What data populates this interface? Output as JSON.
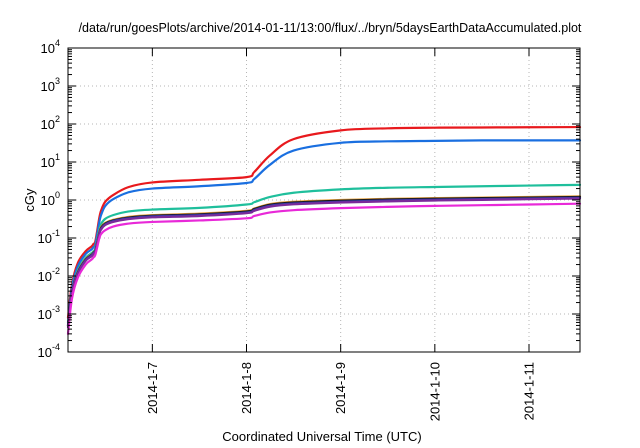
{
  "chart_data": {
    "type": "line",
    "title": "/data/run/goesPlots/archive/2014-01-11/13:00/flux/../bryn/5daysEarthDataAccumulated.plot",
    "xlabel": "Coordinated Universal Time (UTC)",
    "ylabel": "cGy",
    "x_ticks": [
      "2014-1-7",
      "2014-1-8",
      "2014-1-9",
      "2014-1-10",
      "2014-1-11"
    ],
    "xlim": [
      "2014-01-06T02:30",
      "2014-01-11T13:00"
    ],
    "y_scale": "log",
    "ylim": [
      0.0001,
      10000
    ],
    "y_ticks": [
      {
        "base": "10",
        "exp": "-4"
      },
      {
        "base": "10",
        "exp": "-3"
      },
      {
        "base": "10",
        "exp": "-2"
      },
      {
        "base": "10",
        "exp": "-1"
      },
      {
        "base": "10",
        "exp": "0"
      },
      {
        "base": "10",
        "exp": "1"
      },
      {
        "base": "10",
        "exp": "2"
      },
      {
        "base": "10",
        "exp": "3"
      },
      {
        "base": "10",
        "exp": "4"
      }
    ],
    "grid": true,
    "x": [
      "2014-01-06T02:30",
      "2014-01-06T03:30",
      "2014-01-06T05:00",
      "2014-01-06T07:00",
      "2014-01-06T08:30",
      "2014-01-06T09:00",
      "2014-01-06T09:30",
      "2014-01-06T10:30",
      "2014-01-06T11:00",
      "2014-01-06T12:00",
      "2014-01-06T14:00",
      "2014-01-06T18:00",
      "2014-01-07T00:00",
      "2014-01-07T12:00",
      "2014-01-08T00:00",
      "2014-01-08T02:00",
      "2014-01-08T06:00",
      "2014-01-08T12:00",
      "2014-01-09T00:00",
      "2014-01-09T12:00",
      "2014-01-10T00:00",
      "2014-01-10T12:00",
      "2014-01-11T00:00",
      "2014-01-11T13:00"
    ],
    "series": [
      {
        "color": "#e8191d",
        "values": [
          0.0008,
          0.006,
          0.022,
          0.045,
          0.06,
          0.07,
          0.085,
          0.35,
          0.55,
          0.9,
          1.35,
          2.2,
          2.9,
          3.4,
          4.0,
          5.5,
          15,
          40,
          68,
          77,
          80,
          81,
          82,
          83
        ]
      },
      {
        "color": "#1a6fe0",
        "values": [
          0.0006,
          0.005,
          0.018,
          0.038,
          0.05,
          0.058,
          0.07,
          0.27,
          0.42,
          0.7,
          1.05,
          1.6,
          2.0,
          2.3,
          2.8,
          3.6,
          8.5,
          20,
          32,
          35,
          36,
          37,
          37,
          37
        ]
      },
      {
        "color": "#1fbf9c",
        "values": [
          0.0005,
          0.004,
          0.014,
          0.03,
          0.04,
          0.045,
          0.055,
          0.17,
          0.24,
          0.32,
          0.4,
          0.5,
          0.56,
          0.62,
          0.76,
          0.88,
          1.2,
          1.55,
          1.9,
          2.1,
          2.2,
          2.3,
          2.4,
          2.5
        ]
      },
      {
        "color": "#e8a23c",
        "values": [
          0.0005,
          0.004,
          0.013,
          0.028,
          0.037,
          0.042,
          0.05,
          0.15,
          0.2,
          0.25,
          0.3,
          0.36,
          0.4,
          0.44,
          0.52,
          0.6,
          0.78,
          0.9,
          1.0,
          1.07,
          1.12,
          1.16,
          1.2,
          1.25
        ]
      },
      {
        "color": "#1a1a1a",
        "values": [
          0.0005,
          0.004,
          0.0125,
          0.027,
          0.036,
          0.041,
          0.049,
          0.14,
          0.19,
          0.24,
          0.29,
          0.345,
          0.385,
          0.42,
          0.5,
          0.58,
          0.75,
          0.86,
          0.96,
          1.03,
          1.08,
          1.12,
          1.16,
          1.2
        ]
      },
      {
        "color": "#3a3aa8",
        "values": [
          0.0005,
          0.0038,
          0.012,
          0.026,
          0.035,
          0.04,
          0.047,
          0.135,
          0.18,
          0.23,
          0.28,
          0.33,
          0.37,
          0.4,
          0.47,
          0.55,
          0.71,
          0.81,
          0.9,
          0.97,
          1.02,
          1.06,
          1.1,
          1.14
        ]
      },
      {
        "color": "#7a2a9a",
        "values": [
          0.00045,
          0.0035,
          0.0115,
          0.025,
          0.033,
          0.038,
          0.045,
          0.13,
          0.17,
          0.22,
          0.265,
          0.315,
          0.35,
          0.38,
          0.45,
          0.52,
          0.67,
          0.77,
          0.86,
          0.92,
          0.97,
          1.01,
          1.05,
          1.09
        ]
      },
      {
        "color": "#e829d8",
        "values": [
          0.0003,
          0.0025,
          0.009,
          0.02,
          0.027,
          0.031,
          0.037,
          0.1,
          0.13,
          0.16,
          0.2,
          0.24,
          0.265,
          0.29,
          0.33,
          0.38,
          0.47,
          0.54,
          0.61,
          0.66,
          0.7,
          0.73,
          0.76,
          0.8
        ]
      }
    ]
  }
}
